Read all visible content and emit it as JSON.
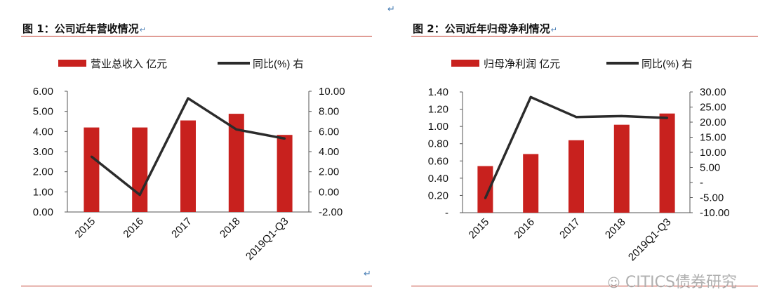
{
  "top_mark": "↵",
  "watermark": "CITICS债券研究",
  "charts": [
    {
      "title": "图 1：公司近年营收情况",
      "title_mark": "↵",
      "corner_mark": "↵",
      "chart_data": {
        "type": "bar",
        "categories": [
          "2015",
          "2016",
          "2017",
          "2018",
          "2019Q1-Q3"
        ],
        "series": [
          {
            "name": "营业总收入  亿元",
            "type": "bar",
            "axis": "left",
            "values": [
              4.2,
              4.2,
              4.55,
              4.88,
              3.83
            ]
          },
          {
            "name": "同比(%)  右",
            "type": "line",
            "axis": "right",
            "values": [
              3.5,
              -0.3,
              9.3,
              6.2,
              5.3
            ]
          }
        ],
        "y_left": {
          "min": 0,
          "max": 6,
          "ticks": [
            "0.00",
            "1.00",
            "2.00",
            "3.00",
            "4.00",
            "5.00",
            "6.00"
          ]
        },
        "y_right": {
          "min": -2,
          "max": 10,
          "ticks": [
            "-2.00",
            "0.00",
            "2.00",
            "4.00",
            "6.00",
            "8.00",
            "10.00"
          ]
        },
        "grid": false,
        "legend": "top",
        "colors": {
          "bar": "#c8211e",
          "line": "#2b2b2b"
        }
      }
    },
    {
      "title": "图 2：公司近年归母净利情况",
      "title_mark": "↵",
      "chart_data": {
        "type": "bar",
        "categories": [
          "2015",
          "2016",
          "2017",
          "2018",
          "2019Q1-Q3"
        ],
        "series": [
          {
            "name": "归母净利润  亿元",
            "type": "bar",
            "axis": "left",
            "values": [
              0.54,
              0.68,
              0.84,
              1.02,
              1.15
            ]
          },
          {
            "name": "同比(%)  右",
            "type": "line",
            "axis": "right",
            "values": [
              -5.2,
              28.3,
              21.7,
              22.0,
              21.4
            ]
          }
        ],
        "y_left": {
          "min": 0,
          "max": 1.4,
          "ticks": [
            "-",
            "0.20",
            "0.40",
            "0.60",
            "0.80",
            "1.00",
            "1.20",
            "1.40"
          ]
        },
        "y_right": {
          "min": -10,
          "max": 30,
          "ticks": [
            "-10.00",
            "-5.00",
            "-",
            "5.00",
            "10.00",
            "15.00",
            "20.00",
            "25.00",
            "30.00"
          ]
        },
        "grid": false,
        "legend": "top",
        "colors": {
          "bar": "#c8211e",
          "line": "#2b2b2b"
        }
      }
    }
  ]
}
